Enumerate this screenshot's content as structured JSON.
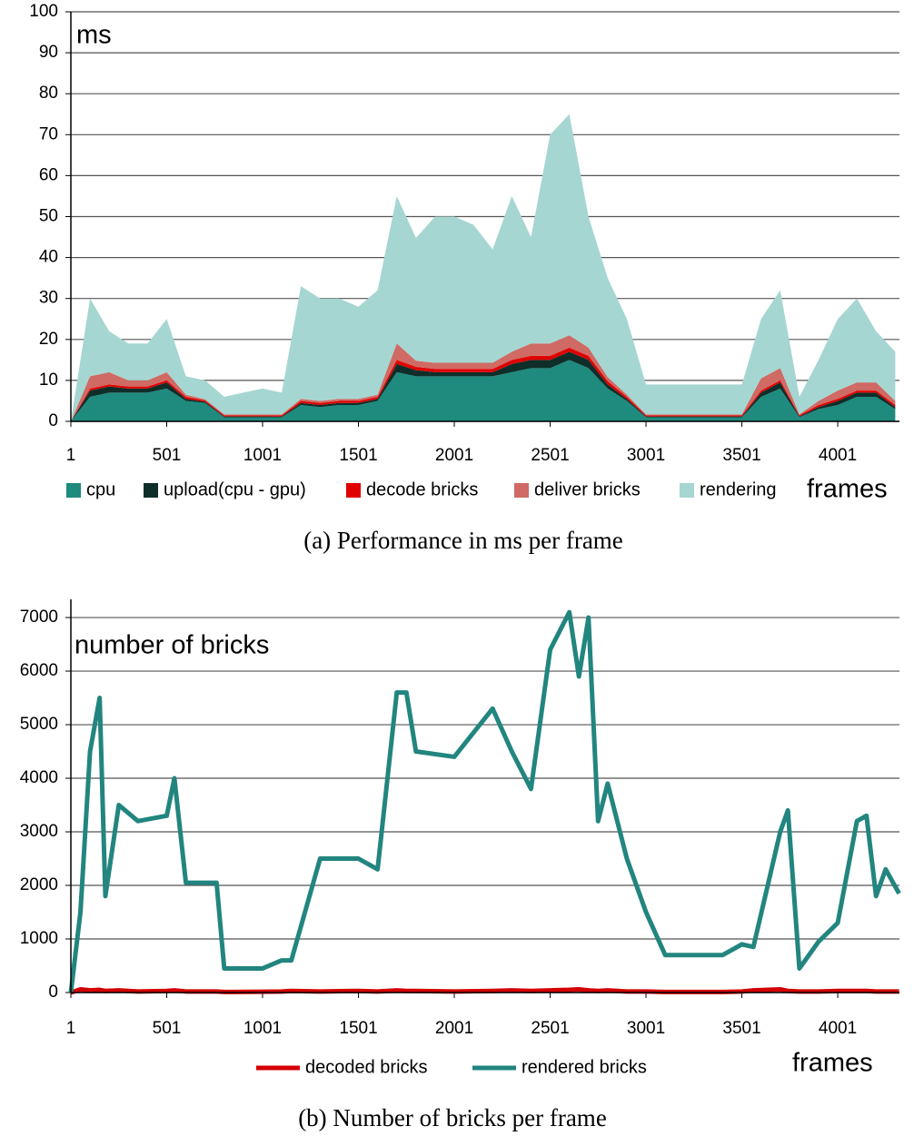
{
  "chart_data": [
    {
      "type": "area",
      "stacked": true,
      "annotation": "ms",
      "xlabel": "frames",
      "caption": "(a)  Performance in ms per frame",
      "xlim": [
        1,
        4323
      ],
      "xticks": [
        1,
        501,
        1001,
        1501,
        2001,
        2501,
        3001,
        3501,
        4001
      ],
      "ylim": [
        0,
        100
      ],
      "yticks": [
        0,
        10,
        20,
        30,
        40,
        50,
        60,
        70,
        80,
        90,
        100
      ],
      "grid": true,
      "x": [
        1,
        101,
        201,
        301,
        401,
        501,
        601,
        701,
        801,
        901,
        1001,
        1101,
        1201,
        1301,
        1401,
        1501,
        1601,
        1701,
        1801,
        1901,
        2001,
        2101,
        2201,
        2301,
        2401,
        2501,
        2601,
        2701,
        2801,
        2901,
        3001,
        3101,
        3201,
        3301,
        3401,
        3501,
        3601,
        3701,
        3801,
        3901,
        4001,
        4101,
        4201,
        4301
      ],
      "series": [
        {
          "name": "cpu",
          "color": "#1f8a7e",
          "values": [
            0,
            6,
            7,
            7,
            7,
            8,
            5,
            4.5,
            1,
            1,
            1,
            1,
            4,
            3.5,
            4,
            4,
            5,
            12,
            11,
            11,
            11,
            11,
            11,
            12,
            13,
            13,
            15,
            13,
            8,
            5,
            1,
            1,
            1,
            1,
            1,
            1,
            6,
            8,
            1,
            3,
            4,
            6,
            6,
            3
          ]
        },
        {
          "name": "upload(cpu - gpu)",
          "color": "#0f2e29",
          "values": [
            0,
            1.5,
            1.5,
            1,
            1,
            1.5,
            0.5,
            0.3,
            0.2,
            0.2,
            0.2,
            0.2,
            0.5,
            0.5,
            0.5,
            0.5,
            0.5,
            2,
            1.5,
            1,
            1,
            1,
            1,
            2,
            2,
            2,
            2,
            2,
            1,
            0.5,
            0.2,
            0.2,
            0.2,
            0.2,
            0.2,
            0.2,
            1,
            1.5,
            0.2,
            0.5,
            1,
            1,
            1,
            0.5
          ]
        },
        {
          "name": "decode bricks",
          "color": "#e00000",
          "values": [
            0,
            0.5,
            0.5,
            0.5,
            0.5,
            0.5,
            0.5,
            0.3,
            0.3,
            0.3,
            0.3,
            0.3,
            0.5,
            0.5,
            0.5,
            0.5,
            0.5,
            1,
            0.8,
            0.8,
            0.8,
            0.8,
            0.8,
            1,
            1,
            1,
            1,
            1,
            0.8,
            0.5,
            0.3,
            0.3,
            0.3,
            0.3,
            0.3,
            0.3,
            0.5,
            0.5,
            0.3,
            0.5,
            0.5,
            0.5,
            0.5,
            0.5
          ]
        },
        {
          "name": "deliver bricks",
          "color": "#cf6a64",
          "values": [
            0,
            3,
            3,
            1.5,
            1.5,
            2,
            0.5,
            0.3,
            0.2,
            0.2,
            0.2,
            0.2,
            0.5,
            0.5,
            0.5,
            0.5,
            0.5,
            4,
            1.5,
            1.5,
            1.5,
            1.5,
            1.5,
            2,
            3,
            3,
            3,
            2,
            1,
            0.5,
            0.2,
            0.2,
            0.2,
            0.2,
            0.2,
            0.2,
            3,
            3,
            0.2,
            1,
            2,
            2,
            2,
            1
          ]
        },
        {
          "name": "rendering",
          "color": "#a6d6d1",
          "values": [
            0,
            19,
            10,
            9,
            9,
            13,
            4.5,
            4.6,
            4.3,
            5.3,
            6.3,
            5.3,
            27.5,
            25,
            24.5,
            22.5,
            25.5,
            36,
            30,
            35.7,
            35.7,
            33.7,
            27.7,
            38,
            26,
            51,
            54,
            32,
            24.2,
            18.5,
            7.3,
            7.3,
            7.3,
            7.3,
            7.3,
            7.3,
            14.5,
            19,
            4.3,
            10,
            17.5,
            20.5,
            12.5,
            12
          ]
        }
      ]
    },
    {
      "type": "line",
      "annotation": "number of bricks",
      "xlabel": "frames",
      "caption": "(b)  Number of bricks per frame",
      "xlim": [
        1,
        4323
      ],
      "xticks": [
        1,
        501,
        1001,
        1501,
        2001,
        2501,
        3001,
        3501,
        4001
      ],
      "ylim": [
        0,
        7340
      ],
      "yticks": [
        0,
        1000,
        2000,
        3000,
        4000,
        5000,
        6000,
        7000
      ],
      "grid": true,
      "x": [
        1,
        51,
        101,
        151,
        181,
        251,
        351,
        501,
        541,
        601,
        761,
        801,
        1001,
        1101,
        1151,
        1301,
        1501,
        1601,
        1701,
        1751,
        1801,
        2001,
        2201,
        2301,
        2401,
        2501,
        2601,
        2651,
        2701,
        2751,
        2801,
        2901,
        3001,
        3101,
        3401,
        3501,
        3561,
        3701,
        3741,
        3801,
        3901,
        4001,
        4101,
        4151,
        4201,
        4251,
        4321
      ],
      "series": [
        {
          "name": "decoded bricks",
          "color": "#d40000",
          "values": [
            0,
            60,
            40,
            50,
            30,
            40,
            20,
            30,
            40,
            20,
            20,
            10,
            15,
            20,
            30,
            20,
            30,
            20,
            40,
            30,
            30,
            20,
            30,
            40,
            30,
            40,
            50,
            60,
            40,
            30,
            40,
            20,
            20,
            10,
            10,
            20,
            40,
            60,
            30,
            20,
            20,
            30,
            30,
            30,
            20,
            20,
            20
          ]
        },
        {
          "name": "rendered bricks",
          "color": "#22857f",
          "values": [
            0,
            1500,
            4500,
            5500,
            1800,
            3500,
            3200,
            3300,
            4000,
            2050,
            2050,
            450,
            450,
            600,
            600,
            2500,
            2500,
            2300,
            5600,
            5600,
            4500,
            4400,
            5300,
            4500,
            3800,
            6400,
            7100,
            5900,
            7000,
            3200,
            3900,
            2500,
            1500,
            700,
            700,
            900,
            850,
            3000,
            3400,
            450,
            950,
            1300,
            3200,
            3300,
            1800,
            2300,
            1850
          ]
        }
      ]
    }
  ]
}
